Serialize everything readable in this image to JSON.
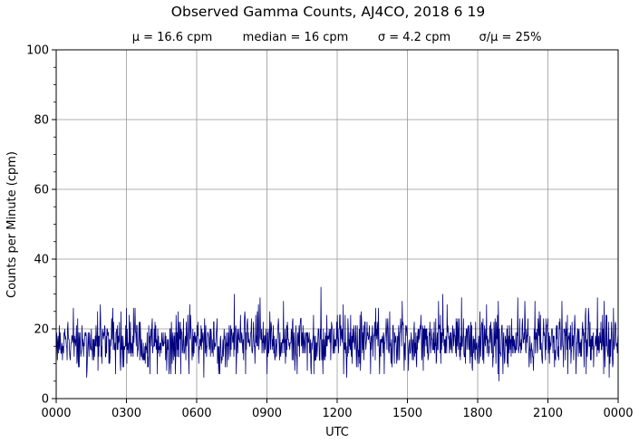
{
  "chart_data": {
    "type": "line",
    "title": "Observed Gamma Counts, AJ4CO, 2018 6 19",
    "subtitle": {
      "mean": "μ = 16.6 cpm",
      "median": "median = 16 cpm",
      "sigma": "σ = 4.2 cpm",
      "ratio": "σ/μ = 25%"
    },
    "xlabel": "UTC",
    "ylabel": "Counts per Minute (cpm)",
    "x_ticks": [
      "0000",
      "0300",
      "0600",
      "0900",
      "1200",
      "1500",
      "1800",
      "2100",
      "0000"
    ],
    "y_ticks": [
      "0",
      "20",
      "40",
      "60",
      "80",
      "100"
    ],
    "ylim": [
      0,
      100
    ],
    "xlim_hours": [
      0,
      24
    ],
    "grid": true,
    "line_color": "#000080",
    "sampling": "one sample per minute over 24 hours",
    "series": [
      {
        "summary": {
          "mean": 16.6,
          "median": 16,
          "std": 4.2,
          "min": 5,
          "max": 32
        },
        "peaks": [
          {
            "hour": 3.0,
            "value": 26
          },
          {
            "hour": 5.7,
            "value": 27
          },
          {
            "hour": 7.6,
            "value": 30
          },
          {
            "hour": 8.7,
            "value": 29
          },
          {
            "hour": 9.7,
            "value": 28
          },
          {
            "hour": 11.3,
            "value": 32
          },
          {
            "hour": 16.5,
            "value": 30
          },
          {
            "hour": 17.3,
            "value": 29
          },
          {
            "hour": 19.7,
            "value": 29
          },
          {
            "hour": 23.1,
            "value": 29
          }
        ],
        "troughs": [
          {
            "hour": 1.3,
            "value": 6
          },
          {
            "hour": 6.3,
            "value": 6
          },
          {
            "hour": 12.4,
            "value": 6
          },
          {
            "hour": 18.9,
            "value": 5
          },
          {
            "hour": 23.6,
            "value": 6
          }
        ]
      }
    ]
  }
}
